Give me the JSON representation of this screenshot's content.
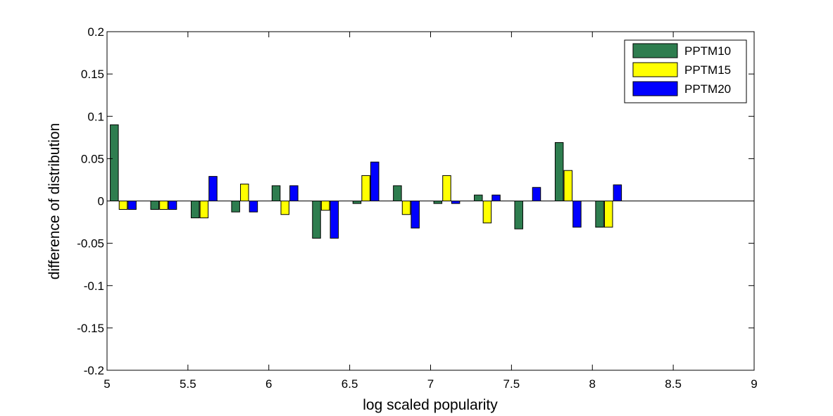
{
  "chart_data": {
    "type": "bar",
    "title": "",
    "xlabel": "log scaled popularity",
    "ylabel": "difference of distribution",
    "xlim": [
      5,
      9
    ],
    "ylim": [
      -0.2,
      0.2
    ],
    "x_ticks": [
      "5",
      "5.5",
      "6",
      "6.5",
      "7",
      "7.5",
      "8",
      "8.5",
      "9"
    ],
    "y_ticks": [
      "0.2",
      "0.15",
      "0.1",
      "0.05",
      "0",
      "-0.05",
      "-0.1",
      "-0.15",
      "-0.2"
    ],
    "x_tick_values": [
      5,
      5.5,
      6,
      6.5,
      7,
      7.5,
      8,
      8.5,
      9
    ],
    "y_tick_values": [
      0.2,
      0.15,
      0.1,
      0.05,
      0,
      -0.05,
      -0.1,
      -0.15,
      -0.2
    ],
    "x": [
      5.1,
      5.35,
      5.6,
      5.85,
      6.1,
      6.35,
      6.6,
      6.85,
      7.1,
      7.35,
      7.6,
      7.85,
      8.1
    ],
    "series": [
      {
        "name": "PPTM10",
        "color": "#2e7d4f",
        "values": [
          0.09,
          -0.01,
          -0.02,
          -0.013,
          0.018,
          -0.044,
          -0.003,
          0.018,
          -0.003,
          0.007,
          -0.033,
          0.069,
          -0.031
        ]
      },
      {
        "name": "PPTM15",
        "color": "#ffff00",
        "values": [
          -0.01,
          -0.01,
          -0.02,
          0.02,
          -0.016,
          -0.011,
          0.03,
          -0.016,
          0.03,
          -0.026,
          0.0,
          0.036,
          -0.031
        ]
      },
      {
        "name": "PPTM20",
        "color": "#0000ff",
        "values": [
          -0.01,
          -0.01,
          0.029,
          -0.013,
          0.018,
          -0.044,
          0.046,
          -0.032,
          -0.003,
          0.007,
          0.016,
          -0.031,
          0.019
        ]
      }
    ],
    "legend_position": "top-right",
    "grid": false,
    "zero_line": true
  }
}
